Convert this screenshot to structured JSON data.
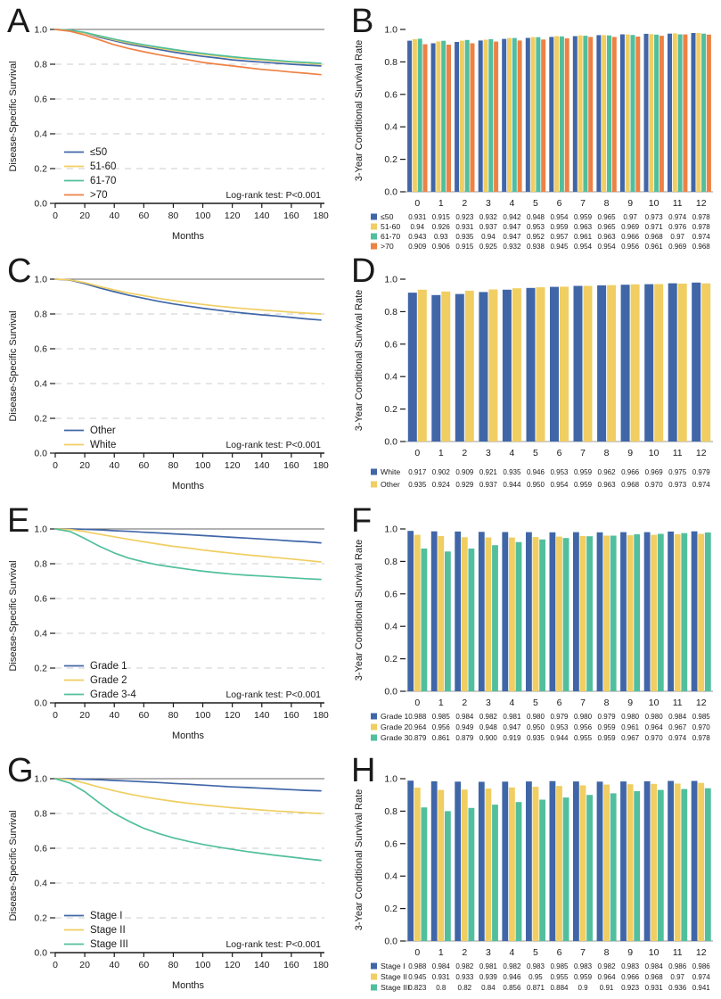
{
  "figure": {
    "km_ylabel": "Disease-Specific Survival",
    "km_xlabel": "Months",
    "bar_ylabel": "3-Year Conditional Survival Rate",
    "annotation": "Log-rank test: P<0.001",
    "colors": {
      "blue": "#4066A8",
      "yellow": "#F0CE62",
      "green": "#51BF9D",
      "orange": "#EE8144",
      "grid": "#CCCCCC",
      "refline": "#666666",
      "axis": "#1A1A1A"
    }
  },
  "chart_data": [
    {
      "panel": "A",
      "type": "line",
      "ylabel": "Disease-Specific Survival",
      "xlabel": "Months",
      "xlim": [
        0,
        180
      ],
      "ylim": [
        0,
        1
      ],
      "xticks": [
        0,
        20,
        40,
        60,
        80,
        100,
        120,
        140,
        160,
        180
      ],
      "yticks": [
        0.0,
        0.2,
        0.4,
        0.6,
        0.8,
        1.0
      ],
      "gridlines": [
        0.2,
        0.4,
        0.6,
        0.8
      ],
      "refline": 1.0,
      "annotation": "Log-rank test: P<0.001",
      "legend_position": "bottom-left",
      "x": [
        0,
        10,
        20,
        30,
        40,
        50,
        60,
        70,
        80,
        90,
        100,
        110,
        120,
        130,
        140,
        150,
        160,
        170,
        180
      ],
      "series": [
        {
          "name": "≤50",
          "color": "#4066A8",
          "y": [
            1.0,
            0.995,
            0.98,
            0.955,
            0.935,
            0.915,
            0.9,
            0.885,
            0.87,
            0.857,
            0.845,
            0.836,
            0.825,
            0.818,
            0.812,
            0.806,
            0.8,
            0.795,
            0.79
          ]
        },
        {
          "name": "51-60",
          "color": "#F0CE62",
          "y": [
            1.0,
            0.995,
            0.98,
            0.96,
            0.94,
            0.922,
            0.907,
            0.893,
            0.88,
            0.868,
            0.857,
            0.847,
            0.838,
            0.83,
            0.824,
            0.818,
            0.812,
            0.806,
            0.8
          ]
        },
        {
          "name": "61-70",
          "color": "#51BF9D",
          "y": [
            1.0,
            0.996,
            0.983,
            0.963,
            0.944,
            0.927,
            0.912,
            0.898,
            0.885,
            0.873,
            0.862,
            0.852,
            0.843,
            0.835,
            0.828,
            0.822,
            0.815,
            0.81,
            0.805
          ]
        },
        {
          "name": ">70",
          "color": "#EE8144",
          "y": [
            1.0,
            0.99,
            0.968,
            0.94,
            0.912,
            0.89,
            0.872,
            0.855,
            0.84,
            0.825,
            0.81,
            0.8,
            0.79,
            0.78,
            0.77,
            0.763,
            0.755,
            0.748,
            0.74
          ]
        }
      ]
    },
    {
      "panel": "B",
      "type": "bar",
      "ylabel": "3-Year Conditional Survival Rate",
      "ylim": [
        0,
        1
      ],
      "yticks": [
        0.0,
        0.2,
        0.4,
        0.6,
        0.8,
        1.0
      ],
      "categories": [
        "0",
        "1",
        "2",
        "3",
        "4",
        "5",
        "6",
        "7",
        "8",
        "9",
        "10",
        "11",
        "12"
      ],
      "series": [
        {
          "name": "≤50",
          "color": "#4066A8",
          "values": [
            "0.931",
            "0.915",
            "0.923",
            "0.932",
            "0.942",
            "0.948",
            "0.954",
            "0.959",
            "0.965",
            "0.97",
            "0.973",
            "0.974",
            "0.978"
          ]
        },
        {
          "name": "51-60",
          "color": "#F0CE62",
          "values": [
            "0.94",
            "0.926",
            "0.931",
            "0.937",
            "0.947",
            "0.953",
            "0.959",
            "0.963",
            "0.965",
            "0.969",
            "0.971",
            "0.976",
            "0.978"
          ]
        },
        {
          "name": "61-70",
          "color": "#51BF9D",
          "values": [
            "0.943",
            "0.93",
            "0.935",
            "0.94",
            "0.947",
            "0.952",
            "0.957",
            "0.961",
            "0.963",
            "0.966",
            "0.968",
            "0.97",
            "0.974"
          ]
        },
        {
          "name": ">70",
          "color": "#EE8144",
          "values": [
            "0.909",
            "0.906",
            "0.915",
            "0.925",
            "0.932",
            "0.938",
            "0.945",
            "0.954",
            "0.954",
            "0.956",
            "0.961",
            "0.969",
            "0.968"
          ]
        }
      ]
    },
    {
      "panel": "C",
      "type": "line",
      "ylabel": "Disease-Specific Survival",
      "xlabel": "Months",
      "xlim": [
        0,
        180
      ],
      "ylim": [
        0,
        1
      ],
      "xticks": [
        0,
        20,
        40,
        60,
        80,
        100,
        120,
        140,
        160,
        180
      ],
      "yticks": [
        0.0,
        0.2,
        0.4,
        0.6,
        0.8,
        1.0
      ],
      "gridlines": [
        0.2,
        0.4,
        0.6,
        0.8
      ],
      "refline": 1.0,
      "annotation": "Log-rank test: P<0.001",
      "legend_position": "bottom-left",
      "x": [
        0,
        10,
        20,
        30,
        40,
        50,
        60,
        70,
        80,
        90,
        100,
        110,
        120,
        130,
        140,
        150,
        160,
        170,
        180
      ],
      "series": [
        {
          "name": "Other",
          "color": "#4066A8",
          "y": [
            1.0,
            0.995,
            0.975,
            0.95,
            0.928,
            0.907,
            0.89,
            0.873,
            0.858,
            0.845,
            0.833,
            0.822,
            0.812,
            0.803,
            0.795,
            0.788,
            0.78,
            0.772,
            0.765
          ]
        },
        {
          "name": "White",
          "color": "#F0CE62",
          "y": [
            1.0,
            0.996,
            0.98,
            0.958,
            0.938,
            0.92,
            0.905,
            0.89,
            0.877,
            0.865,
            0.855,
            0.845,
            0.837,
            0.83,
            0.823,
            0.817,
            0.81,
            0.805,
            0.8
          ]
        }
      ]
    },
    {
      "panel": "D",
      "type": "bar",
      "ylabel": "3-Year Conditional Survival Rate",
      "ylim": [
        0,
        1
      ],
      "yticks": [
        0.0,
        0.2,
        0.4,
        0.6,
        0.8,
        1.0
      ],
      "categories": [
        "0",
        "1",
        "2",
        "3",
        "4",
        "5",
        "6",
        "7",
        "8",
        "9",
        "10",
        "11",
        "12"
      ],
      "series": [
        {
          "name": "White",
          "color": "#4066A8",
          "values": [
            "0.917",
            "0.902",
            "0.909",
            "0.921",
            "0.935",
            "0.946",
            "0.953",
            "0.959",
            "0.962",
            "0.966",
            "0.969",
            "0.975",
            "0.979"
          ]
        },
        {
          "name": "Other",
          "color": "#F0CE62",
          "values": [
            "0.935",
            "0.924",
            "0.929",
            "0.937",
            "0.944",
            "0.950",
            "0.954",
            "0.959",
            "0.963",
            "0.968",
            "0.970",
            "0.973",
            "0.974"
          ]
        }
      ]
    },
    {
      "panel": "E",
      "type": "line",
      "ylabel": "Disease-Specific Survival",
      "xlabel": "Months",
      "xlim": [
        0,
        180
      ],
      "ylim": [
        0,
        1
      ],
      "xticks": [
        0,
        20,
        40,
        60,
        80,
        100,
        120,
        140,
        160,
        180
      ],
      "yticks": [
        0.0,
        0.2,
        0.4,
        0.6,
        0.8,
        1.0
      ],
      "gridlines": [
        0.2,
        0.4,
        0.6,
        0.8
      ],
      "refline": 1.0,
      "annotation": "Log-rank test: P<0.001",
      "legend_position": "bottom-left",
      "x": [
        0,
        10,
        20,
        30,
        40,
        50,
        60,
        70,
        80,
        90,
        100,
        110,
        120,
        130,
        140,
        150,
        160,
        170,
        180
      ],
      "series": [
        {
          "name": "Grade 1",
          "color": "#4066A8",
          "y": [
            1.0,
            1.0,
            0.998,
            0.995,
            0.99,
            0.986,
            0.981,
            0.977,
            0.972,
            0.967,
            0.962,
            0.957,
            0.952,
            0.947,
            0.942,
            0.937,
            0.931,
            0.926,
            0.92
          ]
        },
        {
          "name": "Grade 2",
          "color": "#F0CE62",
          "y": [
            1.0,
            0.997,
            0.985,
            0.97,
            0.955,
            0.94,
            0.926,
            0.913,
            0.9,
            0.89,
            0.879,
            0.869,
            0.86,
            0.851,
            0.843,
            0.835,
            0.827,
            0.819,
            0.81
          ]
        },
        {
          "name": "Grade 3-4",
          "color": "#51BF9D",
          "y": [
            1.0,
            0.985,
            0.945,
            0.9,
            0.862,
            0.832,
            0.81,
            0.793,
            0.78,
            0.768,
            0.757,
            0.748,
            0.74,
            0.734,
            0.729,
            0.724,
            0.719,
            0.714,
            0.71
          ]
        }
      ]
    },
    {
      "panel": "F",
      "type": "bar",
      "ylabel": "3-Year Conditional Survival Rate",
      "ylim": [
        0,
        1
      ],
      "yticks": [
        0.0,
        0.2,
        0.4,
        0.6,
        0.8,
        1.0
      ],
      "categories": [
        "0",
        "1",
        "2",
        "3",
        "4",
        "5",
        "6",
        "7",
        "8",
        "9",
        "10",
        "11",
        "12"
      ],
      "series": [
        {
          "name": "Grade 1",
          "color": "#4066A8",
          "values": [
            "0.988",
            "0.985",
            "0.984",
            "0.982",
            "0.981",
            "0.980",
            "0.979",
            "0.980",
            "0.979",
            "0.980",
            "0.980",
            "0.984",
            "0.985"
          ]
        },
        {
          "name": "Grade 2",
          "color": "#F0CE62",
          "values": [
            "0.964",
            "0.956",
            "0.949",
            "0.948",
            "0.947",
            "0.950",
            "0.953",
            "0.956",
            "0.959",
            "0.961",
            "0.964",
            "0.967",
            "0.970"
          ]
        },
        {
          "name": "Grade 3",
          "color": "#51BF9D",
          "values": [
            "0.879",
            "0.861",
            "0.879",
            "0.900",
            "0.919",
            "0.935",
            "0.944",
            "0.955",
            "0.959",
            "0.967",
            "0.970",
            "0.974",
            "0.978"
          ]
        }
      ]
    },
    {
      "panel": "G",
      "type": "line",
      "ylabel": "Disease-Specific Survival",
      "xlabel": "Months",
      "xlim": [
        0,
        180
      ],
      "ylim": [
        0,
        1
      ],
      "xticks": [
        0,
        20,
        40,
        60,
        80,
        100,
        120,
        140,
        160,
        180
      ],
      "yticks": [
        0.0,
        0.2,
        0.4,
        0.6,
        0.8,
        1.0
      ],
      "gridlines": [
        0.2,
        0.4,
        0.6,
        0.8
      ],
      "refline": 1.0,
      "annotation": "Log-rank test: P<0.001",
      "legend_position": "bottom-left",
      "x": [
        0,
        10,
        20,
        30,
        40,
        50,
        60,
        70,
        80,
        90,
        100,
        110,
        120,
        130,
        140,
        150,
        160,
        170,
        180
      ],
      "series": [
        {
          "name": "Stage I",
          "color": "#4066A8",
          "y": [
            1.0,
            1.0,
            0.997,
            0.994,
            0.99,
            0.986,
            0.982,
            0.978,
            0.973,
            0.968,
            0.963,
            0.958,
            0.953,
            0.949,
            0.945,
            0.941,
            0.937,
            0.933,
            0.93
          ]
        },
        {
          "name": "Stage II",
          "color": "#F0CE62",
          "y": [
            1.0,
            0.995,
            0.975,
            0.951,
            0.93,
            0.912,
            0.896,
            0.882,
            0.87,
            0.859,
            0.849,
            0.841,
            0.833,
            0.826,
            0.82,
            0.814,
            0.809,
            0.804,
            0.8
          ]
        },
        {
          "name": "Stage III",
          "color": "#51BF9D",
          "y": [
            1.0,
            0.975,
            0.925,
            0.86,
            0.8,
            0.755,
            0.715,
            0.685,
            0.66,
            0.64,
            0.622,
            0.607,
            0.594,
            0.581,
            0.57,
            0.559,
            0.549,
            0.539,
            0.53
          ]
        }
      ]
    },
    {
      "panel": "H",
      "type": "bar",
      "ylabel": "3-Year Conditional Survival Rate",
      "ylim": [
        0,
        1
      ],
      "yticks": [
        0.0,
        0.2,
        0.4,
        0.6,
        0.8,
        1.0
      ],
      "categories": [
        "0",
        "1",
        "2",
        "3",
        "4",
        "5",
        "6",
        "7",
        "8",
        "9",
        "10",
        "11",
        "12"
      ],
      "series": [
        {
          "name": "Stage I",
          "color": "#4066A8",
          "values": [
            "0.988",
            "0.984",
            "0.982",
            "0.981",
            "0.982",
            "0.983",
            "0.985",
            "0.983",
            "0.982",
            "0.983",
            "0.984",
            "0.986",
            "0.986"
          ]
        },
        {
          "name": "Stage II",
          "color": "#F0CE62",
          "values": [
            "0.945",
            "0.931",
            "0.933",
            "0.939",
            "0.946",
            "0.95",
            "0.955",
            "0.959",
            "0.964",
            "0.966",
            "0.968",
            "0.97",
            "0.974"
          ]
        },
        {
          "name": "Stage III",
          "color": "#51BF9D",
          "values": [
            "0.823",
            "0.8",
            "0.82",
            "0.84",
            "0.856",
            "0.871",
            "0.884",
            "0.9",
            "0.91",
            "0.923",
            "0.931",
            "0.936",
            "0.941"
          ]
        }
      ]
    }
  ]
}
